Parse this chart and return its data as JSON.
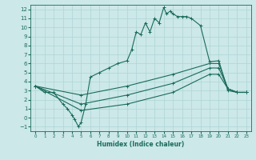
{
  "xlabel": "Humidex (Indice chaleur)",
  "bg_color": "#cce8e8",
  "line_color": "#1a6b5a",
  "grid_color": "#aed4d4",
  "xlim": [
    -0.5,
    23.5
  ],
  "ylim": [
    -1.5,
    12.5
  ],
  "xticks": [
    0,
    1,
    2,
    3,
    4,
    5,
    6,
    7,
    8,
    9,
    10,
    11,
    12,
    13,
    14,
    15,
    16,
    17,
    18,
    19,
    20,
    21,
    22,
    23
  ],
  "yticks": [
    -1,
    0,
    1,
    2,
    3,
    4,
    5,
    6,
    7,
    8,
    9,
    10,
    11,
    12
  ],
  "line1_x": [
    0,
    1,
    2,
    3,
    3.5,
    4,
    4.3,
    4.7,
    5,
    5.5,
    6,
    7,
    8,
    9,
    10,
    10.5,
    11,
    11.5,
    12,
    12.5,
    13,
    13.5,
    14,
    14.3,
    14.7,
    15,
    15.5,
    16,
    16.5,
    17,
    18,
    19,
    20,
    21,
    22,
    23
  ],
  "line1_y": [
    3.5,
    2.8,
    2.8,
    1.5,
    1.0,
    0.3,
    -0.2,
    -1.0,
    -0.5,
    1.5,
    4.5,
    5.0,
    5.5,
    6.0,
    6.3,
    7.5,
    9.5,
    9.2,
    10.5,
    9.5,
    11.0,
    10.5,
    12.2,
    11.5,
    11.8,
    11.5,
    11.2,
    11.2,
    11.2,
    11.0,
    10.2,
    6.2,
    6.3,
    3.0,
    2.8,
    2.8
  ],
  "line2_x": [
    0,
    5,
    10,
    15,
    19,
    20,
    21,
    22,
    23
  ],
  "line2_y": [
    3.5,
    2.5,
    3.5,
    4.8,
    6.0,
    6.0,
    3.2,
    2.8,
    2.8
  ],
  "line3_x": [
    0,
    5,
    10,
    15,
    19,
    20,
    21,
    22,
    23
  ],
  "line3_y": [
    3.5,
    1.5,
    2.5,
    3.8,
    5.5,
    5.5,
    3.2,
    2.8,
    2.8
  ],
  "line4_x": [
    0,
    5,
    10,
    15,
    19,
    20,
    21,
    22,
    23
  ],
  "line4_y": [
    3.5,
    0.8,
    1.5,
    2.8,
    4.8,
    4.8,
    3.2,
    2.8,
    2.8
  ]
}
